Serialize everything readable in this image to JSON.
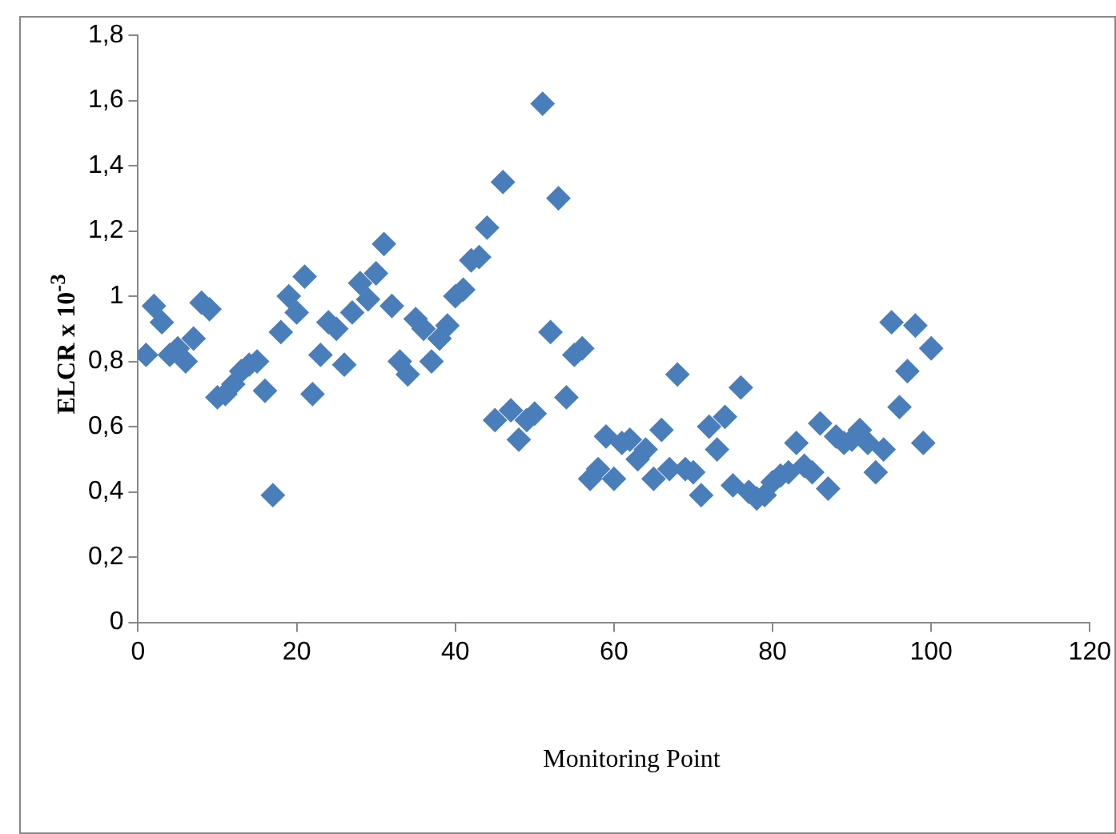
{
  "chart_data": {
    "type": "scatter",
    "xlabel": "Monitoring Point",
    "ylabel": "ELCR x 10$^{-3}$",
    "x": [
      1,
      2,
      3,
      4,
      5,
      6,
      7,
      8,
      9,
      10,
      11,
      12,
      13,
      14,
      15,
      16,
      17,
      18,
      19,
      20,
      21,
      22,
      23,
      24,
      25,
      26,
      27,
      28,
      29,
      30,
      31,
      32,
      33,
      34,
      35,
      36,
      37,
      38,
      39,
      40,
      41,
      42,
      43,
      44,
      45,
      46,
      47,
      48,
      49,
      50,
      51,
      52,
      53,
      54,
      55,
      56,
      57,
      58,
      59,
      60,
      61,
      62,
      63,
      64,
      65,
      66,
      67,
      68,
      69,
      70,
      71,
      72,
      73,
      74,
      75,
      76,
      77,
      78,
      79,
      80,
      81,
      82,
      83,
      84,
      85,
      86,
      87,
      88,
      89,
      90,
      91,
      92,
      93,
      94,
      95,
      96,
      97,
      98,
      99,
      100
    ],
    "series": [
      {
        "color": "#4a7ebb",
        "values": [
          0.82,
          0.97,
          0.92,
          0.82,
          0.84,
          0.8,
          0.87,
          0.98,
          0.96,
          0.69,
          0.7,
          0.73,
          0.77,
          0.79,
          0.8,
          0.71,
          0.39,
          0.89,
          1.0,
          0.95,
          1.06,
          0.7,
          0.82,
          0.92,
          0.9,
          0.79,
          0.95,
          1.04,
          0.99,
          1.07,
          1.16,
          0.97,
          0.8,
          0.76,
          0.93,
          0.9,
          0.8,
          0.87,
          0.91,
          1.0,
          1.02,
          1.11,
          1.12,
          1.21,
          0.62,
          1.35,
          0.65,
          0.56,
          0.62,
          0.64,
          1.59,
          0.89,
          1.3,
          0.69,
          0.82,
          0.84,
          0.44,
          0.47,
          0.57,
          0.44,
          0.55,
          0.56,
          0.5,
          0.53,
          0.44,
          0.59,
          0.47,
          0.76,
          0.47,
          0.46,
          0.39,
          0.6,
          0.53,
          0.63,
          0.42,
          0.72,
          0.4,
          0.38,
          0.39,
          0.43,
          0.45,
          0.46,
          0.55,
          0.48,
          0.46,
          0.61,
          0.41,
          0.57,
          0.55,
          0.56,
          0.59,
          0.55,
          0.46,
          0.53,
          0.92,
          0.66,
          0.77,
          0.91,
          0.55,
          0.84
        ]
      }
    ],
    "xlim": [
      0,
      120
    ],
    "xticks": [
      0,
      20,
      40,
      60,
      80,
      100,
      120
    ],
    "ylim": [
      0,
      1.8
    ],
    "yticks": [
      0,
      {
        "value": 0.2,
        "label": "0,2"
      },
      {
        "value": 0.4,
        "label": "0,4"
      },
      {
        "value": 0.6,
        "label": "0,6"
      },
      {
        "value": 0.8,
        "label": "0,8"
      },
      1,
      {
        "value": 1.2,
        "label": "1,2"
      },
      {
        "value": 1.4,
        "label": "1,4"
      },
      {
        "value": 1.6,
        "label": "1,6"
      },
      {
        "value": 1.8,
        "label": "1,8"
      }
    ],
    "grid": false,
    "legend": false,
    "marker": "diamond"
  }
}
